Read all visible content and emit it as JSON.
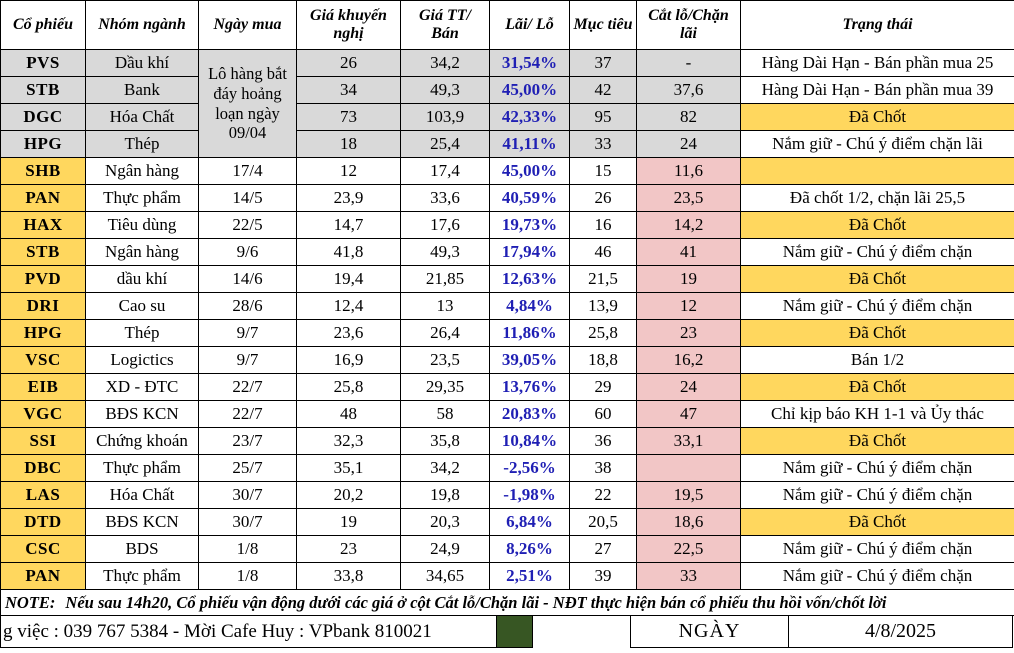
{
  "colors": {
    "gray": "#d9d9d9",
    "yellow": "#ffd75e",
    "pink": "#f2c6c6",
    "blue": "#1f1fb4",
    "green": "#375623"
  },
  "table": {
    "headers": [
      "Cổ phiếu",
      "Nhóm ngành",
      "Ngày mua",
      "Giá khuyến nghị",
      "Giá TT/ Bán",
      "Lãi/ Lỗ",
      "Mục tiêu",
      "Cắt lỗ/Chặn lãi",
      "Trạng thái"
    ],
    "merged_buy_note": "Lô hàng bắt đáy hoảng loạn ngày 09/04",
    "rows": [
      {
        "code": "PVS",
        "sector": "Dầu khí",
        "date": "",
        "rec": "26",
        "market": "34,2",
        "pnl": "31,54%",
        "target": "37",
        "stop": "-",
        "status": "Hàng Dài Hạn - Bán phần mua 25",
        "shaded": true,
        "status_bg": "white"
      },
      {
        "code": "STB",
        "sector": "Bank",
        "date": "",
        "rec": "34",
        "market": "49,3",
        "pnl": "45,00%",
        "target": "42",
        "stop": "37,6",
        "status": "Hàng Dài Hạn - Bán phần mua 39",
        "shaded": true,
        "status_bg": "white"
      },
      {
        "code": "DGC",
        "sector": "Hóa Chất",
        "date": "",
        "rec": "73",
        "market": "103,9",
        "pnl": "42,33%",
        "target": "95",
        "stop": "82",
        "status": "Đã Chốt",
        "shaded": true,
        "status_bg": "yellow"
      },
      {
        "code": "HPG",
        "sector": "Thép",
        "date": "",
        "rec": "18",
        "market": "25,4",
        "pnl": "41,11%",
        "target": "33",
        "stop": "24",
        "status": "Nắm giữ - Chú ý điểm chặn lãi",
        "shaded": true,
        "status_bg": "white"
      },
      {
        "code": "SHB",
        "sector": "Ngân hàng",
        "date": "17/4",
        "rec": "12",
        "market": "17,4",
        "pnl": "45,00%",
        "target": "15",
        "stop": "11,6",
        "status": "",
        "shaded": false,
        "status_bg": "yellow"
      },
      {
        "code": "PAN",
        "sector": "Thực phẩm",
        "date": "14/5",
        "rec": "23,9",
        "market": "33,6",
        "pnl": "40,59%",
        "target": "26",
        "stop": "23,5",
        "status": "Đã chốt 1/2, chặn lãi 25,5",
        "shaded": false,
        "status_bg": "white"
      },
      {
        "code": "HAX",
        "sector": "Tiêu dùng",
        "date": "22/5",
        "rec": "14,7",
        "market": "17,6",
        "pnl": "19,73%",
        "target": "16",
        "stop": "14,2",
        "status": "Đã Chốt",
        "shaded": false,
        "status_bg": "yellow"
      },
      {
        "code": "STB",
        "sector": "Ngân hàng",
        "date": "9/6",
        "rec": "41,8",
        "market": "49,3",
        "pnl": "17,94%",
        "target": "46",
        "stop": "41",
        "status": "Nắm giữ - Chú ý điểm chặn",
        "shaded": false,
        "status_bg": "white"
      },
      {
        "code": "PVD",
        "sector": "dầu khí",
        "date": "14/6",
        "rec": "19,4",
        "market": "21,85",
        "pnl": "12,63%",
        "target": "21,5",
        "stop": "19",
        "status": "Đã Chốt",
        "shaded": false,
        "status_bg": "yellow"
      },
      {
        "code": "DRI",
        "sector": "Cao su",
        "date": "28/6",
        "rec": "12,4",
        "market": "13",
        "pnl": "4,84%",
        "target": "13,9",
        "stop": "12",
        "status": "Nắm giữ - Chú ý điểm chặn",
        "shaded": false,
        "status_bg": "white"
      },
      {
        "code": "HPG",
        "sector": "Thép",
        "date": "9/7",
        "rec": "23,6",
        "market": "26,4",
        "pnl": "11,86%",
        "target": "25,8",
        "stop": "23",
        "status": "Đã Chốt",
        "shaded": false,
        "status_bg": "yellow"
      },
      {
        "code": "VSC",
        "sector": "Logictics",
        "date": "9/7",
        "rec": "16,9",
        "market": "23,5",
        "pnl": "39,05%",
        "target": "18,8",
        "stop": "16,2",
        "status": "Bán 1/2",
        "shaded": false,
        "status_bg": "white"
      },
      {
        "code": "EIB",
        "sector": "XD - ĐTC",
        "date": "22/7",
        "rec": "25,8",
        "market": "29,35",
        "pnl": "13,76%",
        "target": "29",
        "stop": "24",
        "status": "Đã Chốt",
        "shaded": false,
        "status_bg": "yellow"
      },
      {
        "code": "VGC",
        "sector": "BĐS KCN",
        "date": "22/7",
        "rec": "48",
        "market": "58",
        "pnl": "20,83%",
        "target": "60",
        "stop": "47",
        "status": "Chỉ kịp báo KH 1-1 và Ủy thác",
        "shaded": false,
        "status_bg": "white"
      },
      {
        "code": "SSI",
        "sector": "Chứng khoán",
        "date": "23/7",
        "rec": "32,3",
        "market": "35,8",
        "pnl": "10,84%",
        "target": "36",
        "stop": "33,1",
        "status": "Đã Chốt",
        "shaded": false,
        "status_bg": "yellow"
      },
      {
        "code": "DBC",
        "sector": "Thực phẩm",
        "date": "25/7",
        "rec": "35,1",
        "market": "34,2",
        "pnl": "-2,56%",
        "target": "38",
        "stop": "",
        "status": "Nắm giữ - Chú ý điểm chặn",
        "shaded": false,
        "status_bg": "white"
      },
      {
        "code": "LAS",
        "sector": "Hóa Chất",
        "date": "30/7",
        "rec": "20,2",
        "market": "19,8",
        "pnl": "-1,98%",
        "target": "22",
        "stop": "19,5",
        "status": "Nắm giữ - Chú ý điểm chặn",
        "shaded": false,
        "status_bg": "white"
      },
      {
        "code": "DTD",
        "sector": "BĐS KCN",
        "date": "30/7",
        "rec": "19",
        "market": "20,3",
        "pnl": "6,84%",
        "target": "20,5",
        "stop": "18,6",
        "status": "Đã Chốt",
        "shaded": false,
        "status_bg": "yellow"
      },
      {
        "code": "CSC",
        "sector": "BDS",
        "date": "1/8",
        "rec": "23",
        "market": "24,9",
        "pnl": "8,26%",
        "target": "27",
        "stop": "22,5",
        "status": "Nắm giữ - Chú ý điểm chặn",
        "shaded": false,
        "status_bg": "white"
      },
      {
        "code": "PAN",
        "sector": "Thực phẩm",
        "date": "1/8",
        "rec": "33,8",
        "market": "34,65",
        "pnl": "2,51%",
        "target": "39",
        "stop": "33",
        "status": "Nắm giữ - Chú ý điểm chặn",
        "shaded": false,
        "status_bg": "white"
      }
    ]
  },
  "note": {
    "label": "NOTE:",
    "text": "Nếu sau 14h20, Cổ phiếu vận động dưới các giá ở cột Cắt lỗ/Chặn lãi - NĐT thực hiện bán cổ phiếu thu hồi vốn/chốt lời"
  },
  "footer": {
    "contact": "g việc : 039 767 5384 - Mời Cafe Huy : VPbank 810021",
    "date_label": "NGÀY",
    "date_value": "4/8/2025"
  }
}
